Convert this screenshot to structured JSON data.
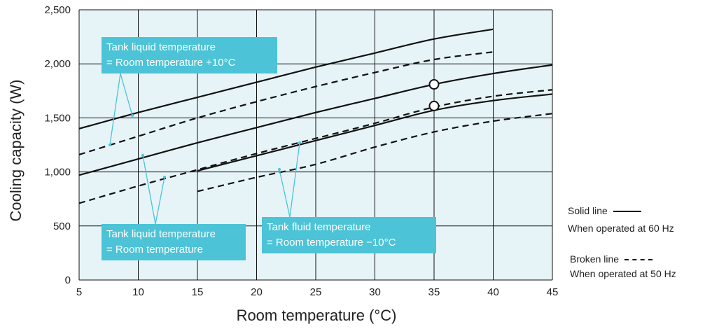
{
  "chart_data": {
    "type": "line",
    "xlabel": "Room temperature (°C)",
    "ylabel": "Cooling capacity (W)",
    "xlim": [
      5,
      45
    ],
    "ylim": [
      0,
      2500
    ],
    "x_ticks": [
      "5",
      "10",
      "15",
      "20",
      "25",
      "30",
      "35",
      "40",
      "45"
    ],
    "y_ticks": [
      "0",
      "500",
      "1,000",
      "1,500",
      "2,000",
      "2,500"
    ],
    "grid": true,
    "colors": {
      "plot_bg": "#e6f4f8",
      "callout": "#4cc3d6",
      "line": "#111111"
    },
    "series": [
      {
        "group": "+10",
        "style": "solid",
        "points": [
          [
            5,
            1400
          ],
          [
            10,
            1550
          ],
          [
            15,
            1690
          ],
          [
            20,
            1830
          ],
          [
            25,
            1970
          ],
          [
            30,
            2100
          ],
          [
            35,
            2230
          ],
          [
            40,
            2320
          ]
        ]
      },
      {
        "group": "+10",
        "style": "dashed",
        "points": [
          [
            5,
            1160
          ],
          [
            10,
            1330
          ],
          [
            15,
            1500
          ],
          [
            20,
            1650
          ],
          [
            25,
            1790
          ],
          [
            30,
            1920
          ],
          [
            35,
            2040
          ],
          [
            40,
            2110
          ]
        ]
      },
      {
        "group": "0",
        "style": "solid",
        "points": [
          [
            5,
            970
          ],
          [
            10,
            1120
          ],
          [
            15,
            1270
          ],
          [
            20,
            1410
          ],
          [
            25,
            1550
          ],
          [
            30,
            1680
          ],
          [
            35,
            1810
          ],
          [
            40,
            1910
          ],
          [
            45,
            1990
          ]
        ]
      },
      {
        "group": "0",
        "style": "dashed",
        "points": [
          [
            5,
            710
          ],
          [
            10,
            870
          ],
          [
            15,
            1020
          ],
          [
            20,
            1170
          ],
          [
            25,
            1310
          ],
          [
            30,
            1450
          ],
          [
            35,
            1600
          ],
          [
            40,
            1700
          ],
          [
            45,
            1760
          ]
        ]
      },
      {
        "group": "-10",
        "style": "solid",
        "points": [
          [
            15,
            1010
          ],
          [
            20,
            1150
          ],
          [
            25,
            1290
          ],
          [
            30,
            1430
          ],
          [
            35,
            1570
          ],
          [
            40,
            1660
          ],
          [
            45,
            1720
          ]
        ]
      },
      {
        "group": "-10",
        "style": "dashed",
        "points": [
          [
            15,
            820
          ],
          [
            20,
            950
          ],
          [
            25,
            1070
          ],
          [
            30,
            1230
          ],
          [
            35,
            1370
          ],
          [
            40,
            1470
          ],
          [
            45,
            1540
          ]
        ]
      }
    ],
    "markers": [
      [
        35,
        1810
      ],
      [
        35,
        1610
      ]
    ],
    "annotations": [
      {
        "lines": [
          "Tank liquid temperature",
          "= Room temperature +10°C"
        ]
      },
      {
        "lines": [
          "Tank liquid temperature",
          "= Room temperature"
        ]
      },
      {
        "lines": [
          "Tank fluid temperature",
          "= Room temperature −10°C"
        ]
      }
    ]
  },
  "legend": {
    "solid_label": "Solid line",
    "solid_desc": "When operated at 60 Hz",
    "broken_label": "Broken line",
    "broken_desc": "When operated at 50 Hz"
  }
}
